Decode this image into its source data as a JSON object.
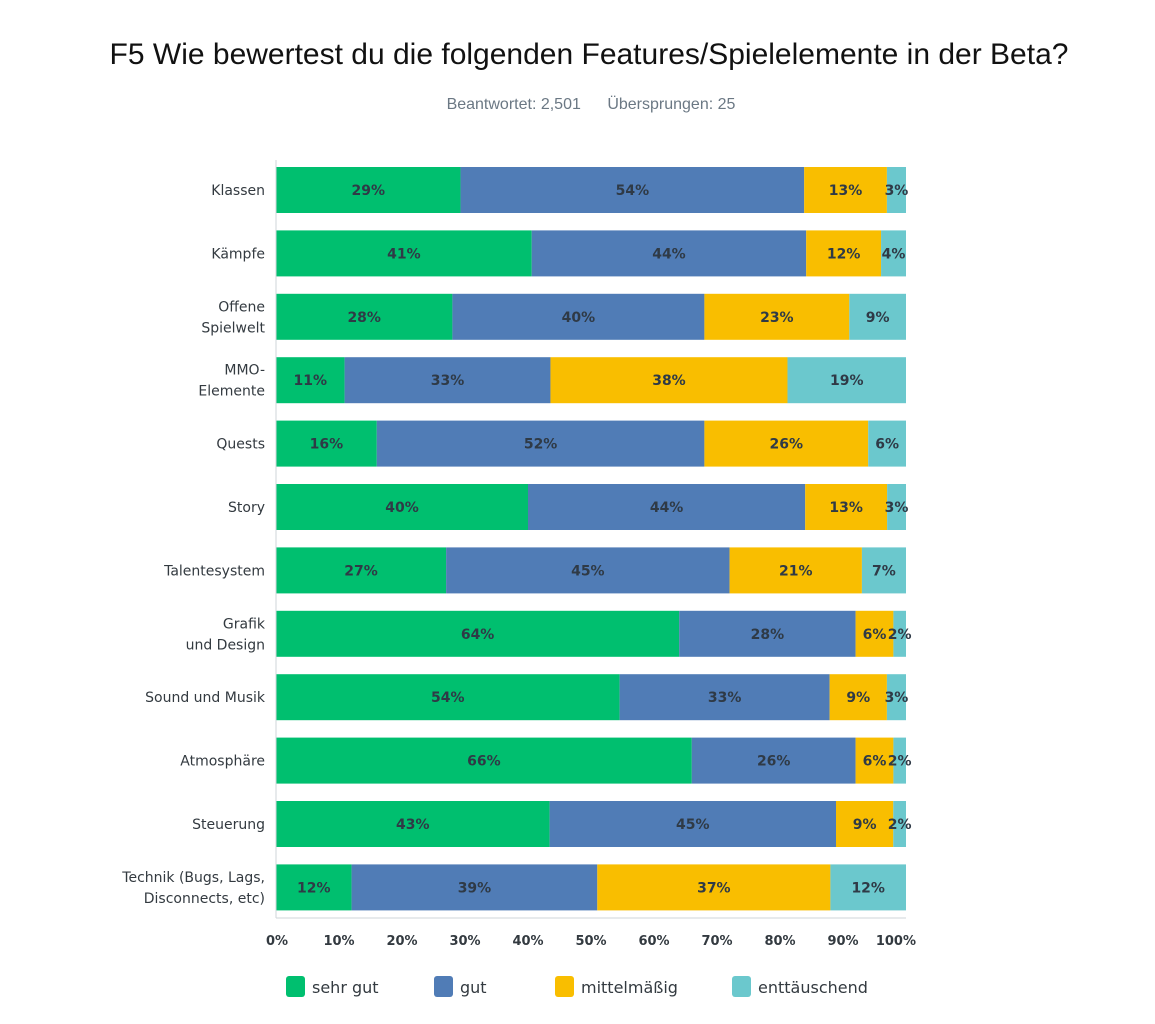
{
  "title": "F5 Wie bewertest du die folgenden Features/Spielelemente in der Beta?",
  "answered": "Beantwortet: 2,501",
  "skipped": "Übersprungen: 25",
  "chart_data": {
    "type": "bar",
    "orientation": "horizontal",
    "stacked": true,
    "categories": [
      "Klassen",
      "Kämpfe",
      "Offene Spielwelt",
      "MMO-Elemente",
      "Quests",
      "Story",
      "Talentesystem",
      "Grafik und Design",
      "Sound und Musik",
      "Atmosphäre",
      "Steuerung",
      "Technik (Bugs, Lags, Disconnects, etc)"
    ],
    "series": [
      {
        "name": "sehr gut",
        "color": "#00bf6f",
        "values": [
          29,
          41,
          28,
          11,
          16,
          40,
          27,
          64,
          54,
          66,
          43,
          12
        ]
      },
      {
        "name": "gut",
        "color": "#507cb6",
        "values": [
          54,
          44,
          40,
          33,
          52,
          44,
          45,
          28,
          33,
          26,
          45,
          39
        ]
      },
      {
        "name": "mittelmäßig",
        "color": "#f9be00",
        "values": [
          13,
          12,
          23,
          38,
          26,
          13,
          21,
          6,
          9,
          6,
          9,
          37
        ]
      },
      {
        "name": "enttäuschend",
        "color": "#6bc8cd",
        "values": [
          3,
          4,
          9,
          19,
          6,
          3,
          7,
          2,
          3,
          2,
          2,
          12
        ]
      }
    ],
    "xlim": [
      0,
      100
    ],
    "ticks": [
      "0%",
      "10%",
      "20%",
      "30%",
      "40%",
      "50%",
      "60%",
      "70%",
      "80%",
      "90%",
      "100%"
    ],
    "grid": false,
    "legend": "bottom"
  }
}
